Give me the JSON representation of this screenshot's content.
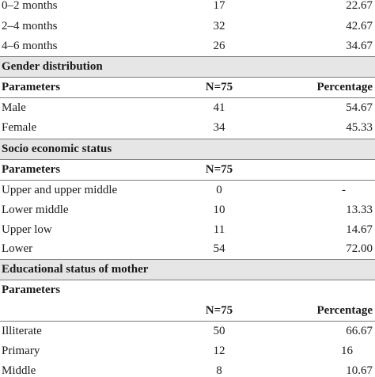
{
  "age_rows": [
    {
      "label": "0–2 months",
      "n": "17",
      "pct": "22.67"
    },
    {
      "label": "2–4 months",
      "n": "32",
      "pct": "42.67"
    },
    {
      "label": "4–6 months",
      "n": "26",
      "pct": "34.67"
    }
  ],
  "gender": {
    "title": "Gender distribution",
    "header": {
      "param": "Parameters",
      "n": "N=75",
      "pct": "Percentage"
    },
    "rows": [
      {
        "label": "Male",
        "n": "41",
        "pct": "54.67"
      },
      {
        "label": "Female",
        "n": "34",
        "pct": "45.33"
      }
    ]
  },
  "socio": {
    "title": "Socio economic status",
    "header": {
      "param": "Parameters",
      "n": "N=75"
    },
    "rows": [
      {
        "label": "Upper and upper middle",
        "n": "0",
        "pct": "-"
      },
      {
        "label": "Lower middle",
        "n": "10",
        "pct": "13.33"
      },
      {
        "label": "Upper low",
        "n": "11",
        "pct": "14.67"
      },
      {
        "label": "Lower",
        "n": "54",
        "pct": "72.00"
      }
    ]
  },
  "education": {
    "title": "Educational status of mother",
    "header": {
      "param": "Parameters",
      "n": "N=75",
      "pct": "Percentage"
    },
    "rows": [
      {
        "label": "Illiterate",
        "n": "50",
        "pct": "66.67"
      },
      {
        "label": "Primary",
        "n": "12",
        "pct": "16"
      },
      {
        "label": "Middle",
        "n": "8",
        "pct": "10.67"
      }
    ]
  },
  "colors": {
    "band": "#e6e6e6",
    "rule": "#7a7a7a"
  }
}
